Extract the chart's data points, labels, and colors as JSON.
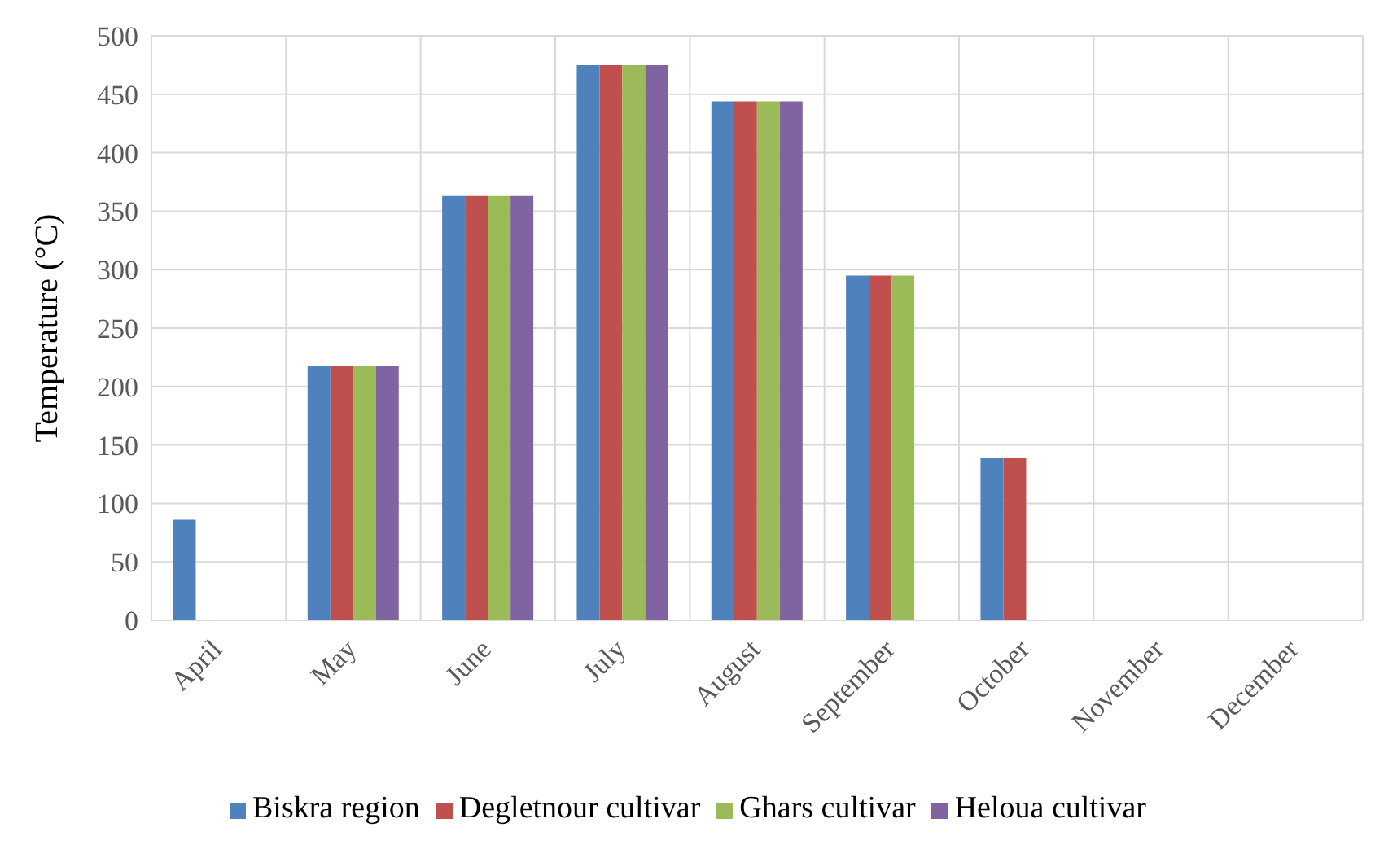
{
  "chart_data": {
    "type": "bar",
    "ylabel": "Temperature (°C)",
    "categories": [
      "April",
      "May",
      "June",
      "July",
      "August",
      "September",
      "October",
      "November",
      "December"
    ],
    "series": [
      {
        "name": "Biskra region",
        "color": "#4f81bd",
        "values": [
          86,
          218,
          363,
          475,
          444,
          295,
          139,
          0,
          0
        ]
      },
      {
        "name": "Degletnour cultivar",
        "color": "#c0504d",
        "values": [
          0,
          218,
          363,
          475,
          444,
          295,
          139,
          0,
          0
        ]
      },
      {
        "name": "Ghars cultivar",
        "color": "#9bbb59",
        "values": [
          0,
          218,
          363,
          475,
          444,
          295,
          0,
          0,
          0
        ]
      },
      {
        "name": "Heloua cultivar",
        "color": "#8064a2",
        "values": [
          0,
          218,
          363,
          475,
          444,
          0,
          0,
          0,
          0
        ]
      }
    ],
    "ylim": [
      0,
      500
    ],
    "yticks": [
      0,
      50,
      100,
      150,
      200,
      250,
      300,
      350,
      400,
      450,
      500
    ],
    "grid": true,
    "legend": "bottom"
  }
}
